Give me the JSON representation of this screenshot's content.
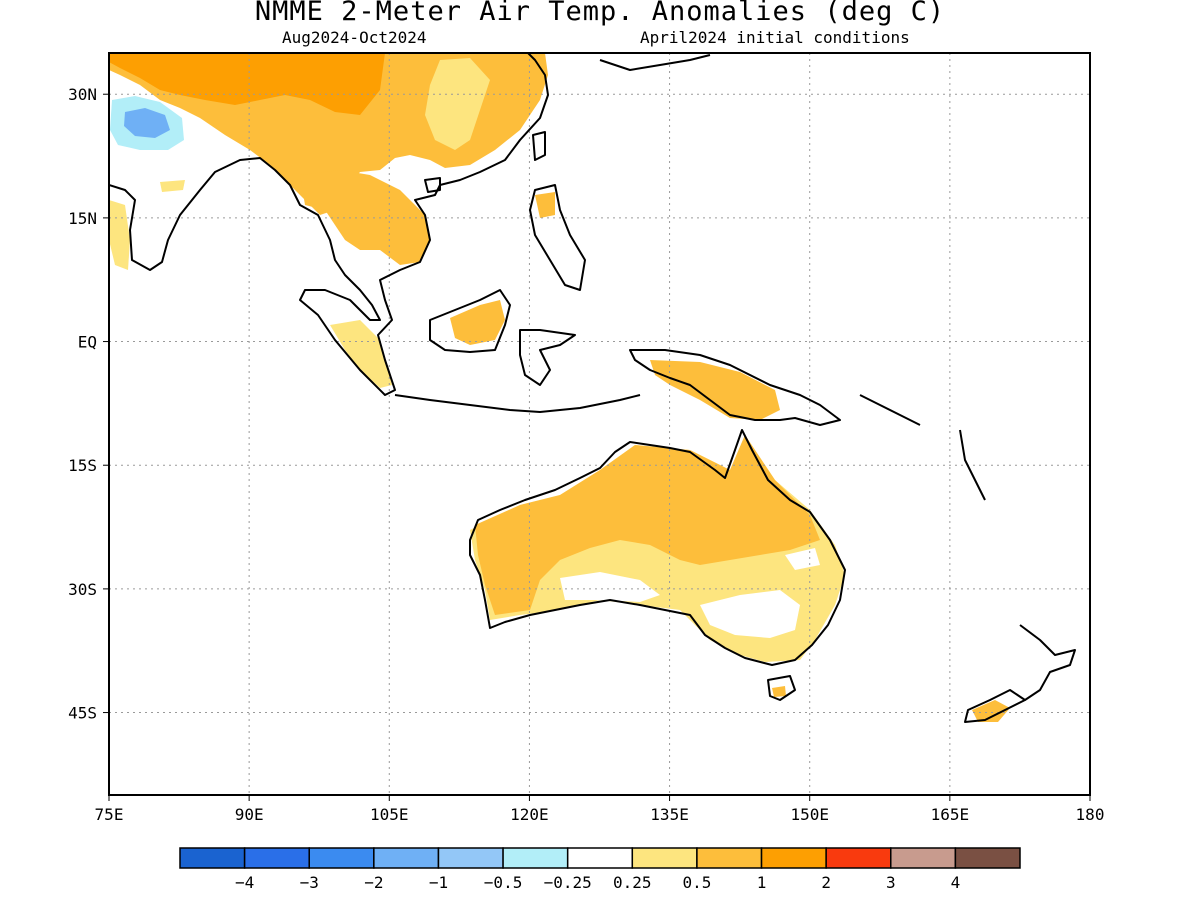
{
  "title": "NMME 2-Meter Air Temp. Anomalies (deg C)",
  "subtitle_left": "Aug2024-Oct2024",
  "subtitle_right": "April2024 initial conditions",
  "map": {
    "lon_range": [
      75,
      180
    ],
    "lat_range": [
      -55,
      35
    ],
    "lat_ticks": [
      {
        "value": 30,
        "label": "30N"
      },
      {
        "value": 15,
        "label": "15N"
      },
      {
        "value": 0,
        "label": "EQ"
      },
      {
        "value": -15,
        "label": "15S"
      },
      {
        "value": -30,
        "label": "30S"
      },
      {
        "value": -45,
        "label": "45S"
      }
    ],
    "lon_ticks": [
      {
        "value": 75,
        "label": "75E"
      },
      {
        "value": 90,
        "label": "90E"
      },
      {
        "value": 105,
        "label": "105E"
      },
      {
        "value": 120,
        "label": "120E"
      },
      {
        "value": 135,
        "label": "135E"
      },
      {
        "value": 150,
        "label": "150E"
      },
      {
        "value": 165,
        "label": "165E"
      },
      {
        "value": 180,
        "label": "180"
      }
    ],
    "grid": true
  },
  "colorbar": {
    "colors": [
      "#1a63d0",
      "#2a6fe8",
      "#3b8bf0",
      "#6fb0f5",
      "#93c7f7",
      "#b2eef8",
      "#ffffff",
      "#fde57f",
      "#fdbe3b",
      "#fd9f02",
      "#f93a0e",
      "#c89b8e",
      "#7a5043"
    ],
    "labels": [
      "-4",
      "-3",
      "-2",
      "-1",
      "-0.5",
      "-0.25",
      "0.25",
      "0.5",
      "1",
      "2",
      "3",
      "4"
    ]
  },
  "regions": [
    {
      "name": "china-south-asia",
      "class": "1-2"
    },
    {
      "name": "tibet-cold",
      "class": "-0.5 to -1"
    },
    {
      "name": "indochina",
      "class": "0.5-1"
    },
    {
      "name": "australia-interior",
      "class": "0.5-1"
    },
    {
      "name": "australia-south",
      "class": "0.25-0.5"
    },
    {
      "name": "new-guinea",
      "class": "0.5-1"
    }
  ],
  "legend_colors": {
    "warm_strong": "#fd9f02",
    "warm_mid": "#fdbe3b",
    "warm_light": "#fde57f",
    "cold_light": "#b2eef8",
    "cold_mid": "#6fb0f5"
  }
}
